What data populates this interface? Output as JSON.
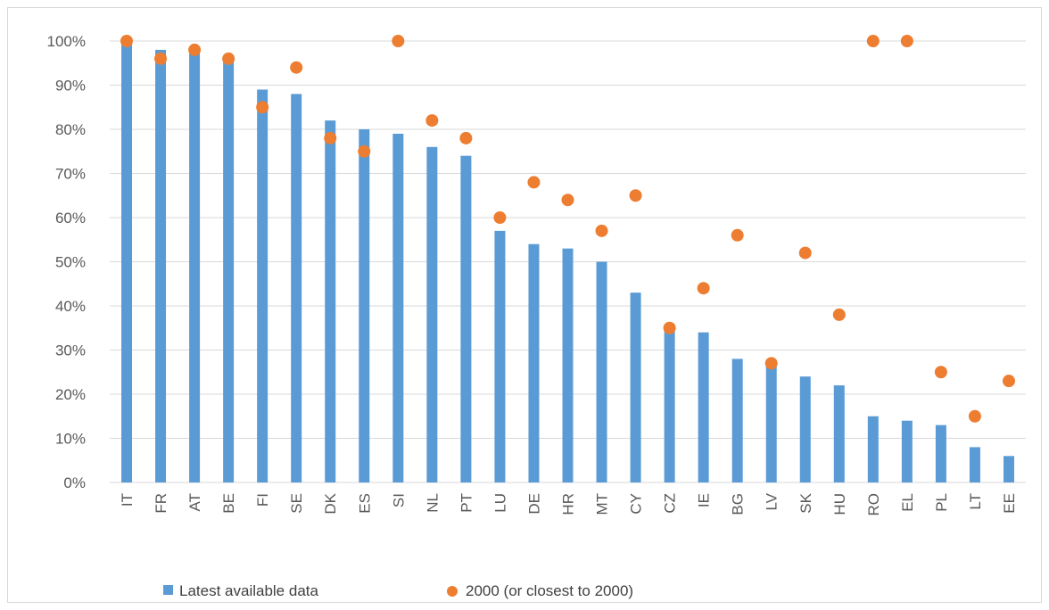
{
  "chart_data": {
    "type": "bar",
    "categories": [
      "IT",
      "FR",
      "AT",
      "BE",
      "FI",
      "SE",
      "DK",
      "ES",
      "SI",
      "NL",
      "PT",
      "LU",
      "DE",
      "HR",
      "MT",
      "CY",
      "CZ",
      "IE",
      "BG",
      "LV",
      "SK",
      "HU",
      "RO",
      "EL",
      "PL",
      "LT",
      "EE"
    ],
    "series": [
      {
        "name": "Latest available data",
        "kind": "bar",
        "color": "#5b9bd5",
        "values": [
          100,
          98,
          98,
          96,
          89,
          88,
          82,
          80,
          79,
          76,
          74,
          57,
          54,
          53,
          50,
          43,
          35,
          34,
          28,
          27,
          24,
          22,
          15,
          14,
          13,
          8,
          6
        ]
      },
      {
        "name": "2000 (or closest to 2000)",
        "kind": "scatter",
        "color": "#ed7d31",
        "values": [
          100,
          96,
          98,
          96,
          85,
          94,
          78,
          75,
          100,
          82,
          78,
          60,
          68,
          64,
          57,
          65,
          35,
          44,
          56,
          27,
          52,
          38,
          100,
          100,
          25,
          15,
          23
        ]
      }
    ],
    "y_ticks": [
      "0%",
      "10%",
      "20%",
      "30%",
      "40%",
      "50%",
      "60%",
      "70%",
      "80%",
      "90%",
      "100%"
    ],
    "ylim": [
      0,
      100
    ],
    "grid": true,
    "legend_position": "bottom"
  }
}
